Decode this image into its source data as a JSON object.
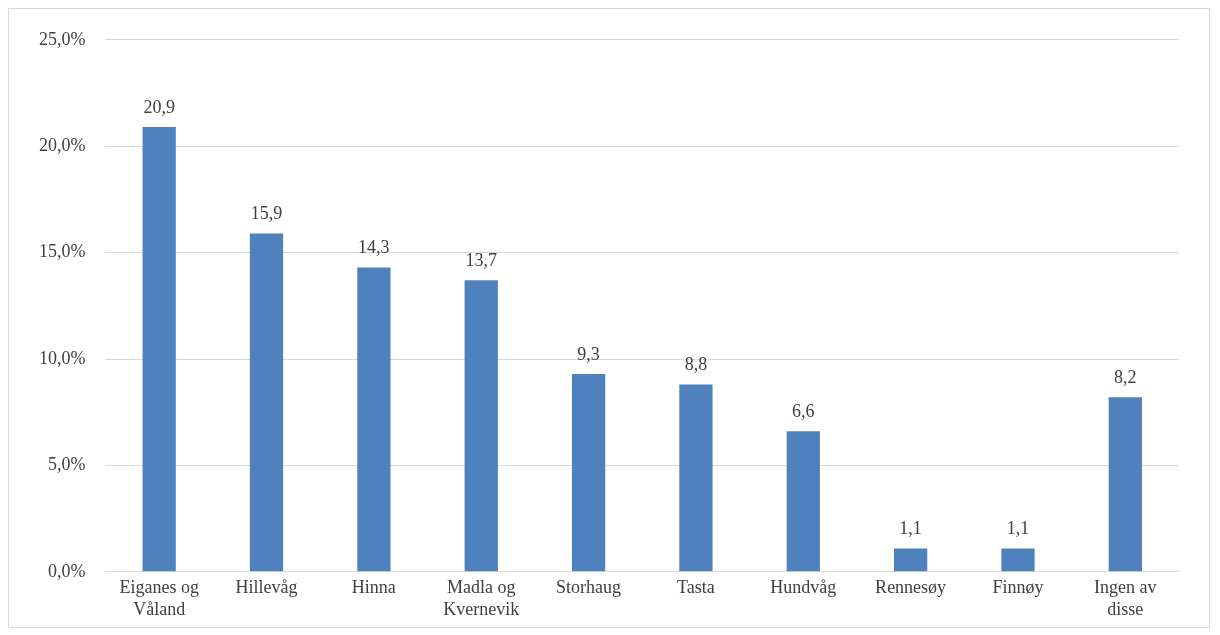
{
  "chart_data": {
    "type": "bar",
    "categories": [
      "Eiganes og Våland",
      "Hillevåg",
      "Hinna",
      "Madla og Kvernevik",
      "Storhaug",
      "Tasta",
      "Hundvåg",
      "Rennesøy",
      "Finnøy",
      "Ingen av disse"
    ],
    "values": [
      20.9,
      15.9,
      14.3,
      13.7,
      9.3,
      8.8,
      6.6,
      1.1,
      1.1,
      8.2
    ],
    "value_labels": [
      "20,9",
      "15,9",
      "14,3",
      "13,7",
      "9,3",
      "8,8",
      "6,6",
      "1,1",
      "1,1",
      "8,2"
    ],
    "color": "#4f81bd",
    "ylim": [
      0,
      25
    ],
    "yticks": [
      {
        "value": 0,
        "label": "0,0%"
      },
      {
        "value": 5,
        "label": "5,0%"
      },
      {
        "value": 10,
        "label": "10,0%"
      },
      {
        "value": 15,
        "label": "15,0%"
      },
      {
        "value": 20,
        "label": "20,0%"
      },
      {
        "value": 25,
        "label": "25,0%"
      }
    ],
    "grid": "y",
    "legend": false
  }
}
